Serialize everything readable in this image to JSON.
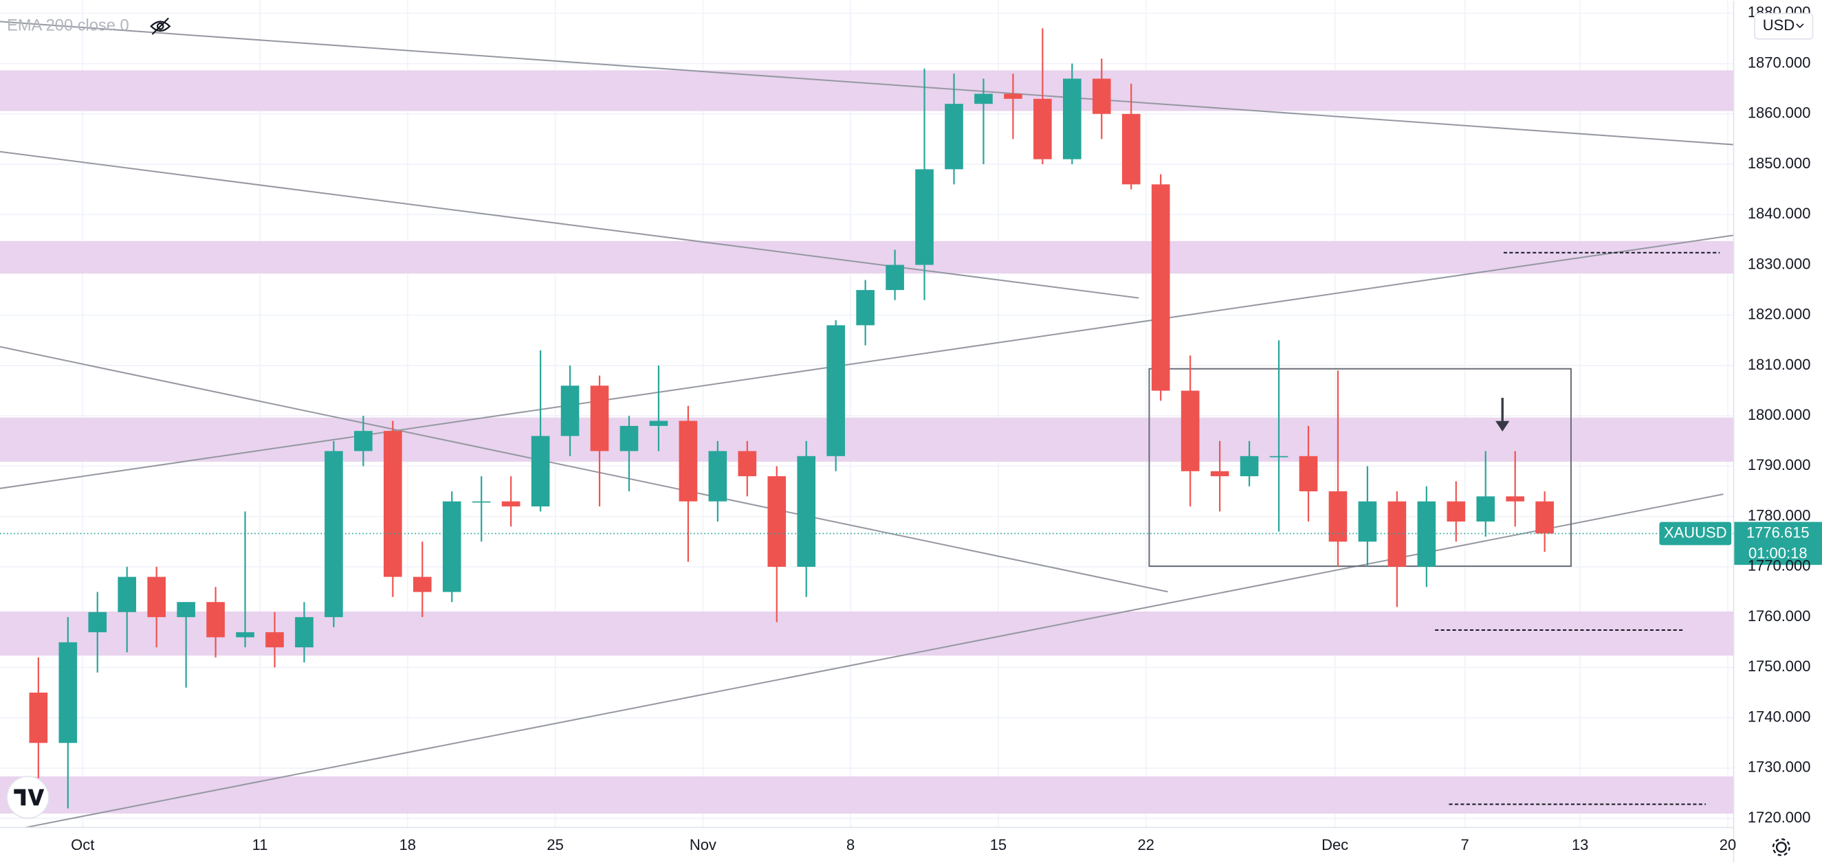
{
  "chart_data": {
    "type": "candlestick",
    "indicator_label": "EMA 200 close 0",
    "currency": "USD",
    "symbol": "XAUUSD",
    "countdown": "01:00:18",
    "last_price": 1776.615,
    "up_color": "#26a69a",
    "down_color": "#ef5350",
    "grid": true,
    "x": [
      -2,
      -1,
      0,
      1,
      2,
      3,
      4,
      5,
      6,
      7,
      8,
      9,
      10,
      11,
      12,
      13,
      14,
      15,
      16,
      17,
      18,
      19,
      20,
      21,
      22,
      23,
      24,
      25,
      26,
      27,
      28,
      29,
      30,
      31,
      32,
      33,
      34,
      35,
      36,
      37,
      38,
      39,
      40,
      41,
      42,
      43,
      44,
      45,
      46,
      47,
      48,
      49
    ],
    "open": [
      1745,
      1735,
      1757,
      1761,
      1768,
      1760,
      1763,
      1756,
      1757,
      1754,
      1760,
      1793,
      1797,
      1768,
      1765,
      1783,
      1783,
      1782,
      1796,
      1806,
      1793,
      1798,
      1799,
      1783,
      1793,
      1788,
      1770,
      1792,
      1818,
      1825,
      1830,
      1849,
      1862,
      1864,
      1863,
      1851,
      1867,
      1860,
      1846,
      1805,
      1789,
      1788,
      1792,
      1792,
      1785,
      1775,
      1783,
      1770,
      1783,
      1779,
      1784,
      1783
    ],
    "high": [
      1752,
      1760,
      1765,
      1770,
      1770,
      1763,
      1766,
      1781,
      1761,
      1763,
      1795,
      1800,
      1799,
      1775,
      1785,
      1788,
      1788,
      1813,
      1810,
      1808,
      1800,
      1810,
      1802,
      1795,
      1795,
      1790,
      1795,
      1819,
      1827,
      1833,
      1869,
      1868,
      1867,
      1868,
      1877,
      1870,
      1871,
      1866,
      1848,
      1812,
      1795,
      1795,
      1815,
      1798,
      1809,
      1790,
      1785,
      1786,
      1787,
      1793,
      1793,
      1785
    ],
    "low": [
      1728,
      1722,
      1749,
      1753,
      1754,
      1746,
      1752,
      1754,
      1750,
      1751,
      1758,
      1790,
      1764,
      1760,
      1763,
      1775,
      1778,
      1781,
      1792,
      1782,
      1785,
      1793,
      1771,
      1779,
      1784,
      1759,
      1764,
      1789,
      1814,
      1823,
      1823,
      1846,
      1850,
      1855,
      1850,
      1850,
      1855,
      1845,
      1803,
      1782,
      1781,
      1786,
      1777,
      1779,
      1770,
      1770,
      1762,
      1766,
      1775,
      1776,
      1778,
      1773
    ],
    "close": [
      1735,
      1755,
      1761,
      1768,
      1760,
      1763,
      1756,
      1757,
      1754,
      1760,
      1793,
      1797,
      1768,
      1765,
      1783,
      1783,
      1782,
      1796,
      1806,
      1793,
      1798,
      1799,
      1783,
      1793,
      1788,
      1770,
      1792,
      1818,
      1825,
      1830,
      1849,
      1862,
      1864,
      1863,
      1851,
      1867,
      1860,
      1846,
      1805,
      1789,
      1788,
      1792,
      1792,
      1785,
      1775,
      1783,
      1770,
      1783,
      1779,
      1784,
      1783,
      1776.615
    ],
    "xlim": [
      -3.3,
      55.4
    ],
    "xticks": [
      {
        "value": -0.5,
        "label": "Oct"
      },
      {
        "value": 5.5,
        "label": "11"
      },
      {
        "value": 10.5,
        "label": "18"
      },
      {
        "value": 15.5,
        "label": "25"
      },
      {
        "value": 20.5,
        "label": "Nov"
      },
      {
        "value": 25.5,
        "label": "8"
      },
      {
        "value": 30.5,
        "label": "15"
      },
      {
        "value": 35.5,
        "label": "22"
      },
      {
        "value": 41.9,
        "label": "Dec"
      },
      {
        "value": 46.3,
        "label": "7"
      },
      {
        "value": 50.2,
        "label": "13"
      },
      {
        "value": 55.2,
        "label": "20"
      }
    ],
    "ylim": [
      1718.2,
      1882.5
    ],
    "yticks": [
      {
        "value": 1720,
        "label": "1720.000"
      },
      {
        "value": 1730,
        "label": "1730.000"
      },
      {
        "value": 1740,
        "label": "1740.000"
      },
      {
        "value": 1750,
        "label": "1750.000"
      },
      {
        "value": 1760,
        "label": "1760.000"
      },
      {
        "value": 1770,
        "label": "1770.000"
      },
      {
        "value": 1780,
        "label": "1780.000"
      },
      {
        "value": 1790,
        "label": "1790.000"
      },
      {
        "value": 1800,
        "label": "1800.000"
      },
      {
        "value": 1810,
        "label": "1810.000"
      },
      {
        "value": 1820,
        "label": "1820.000"
      },
      {
        "value": 1830,
        "label": "1830.000"
      },
      {
        "value": 1840,
        "label": "1840.000"
      },
      {
        "value": 1850,
        "label": "1850.000"
      },
      {
        "value": 1860,
        "label": "1860.000"
      },
      {
        "value": 1870,
        "label": "1870.000"
      },
      {
        "value": 1880,
        "label": "1880.000"
      }
    ]
  }
}
